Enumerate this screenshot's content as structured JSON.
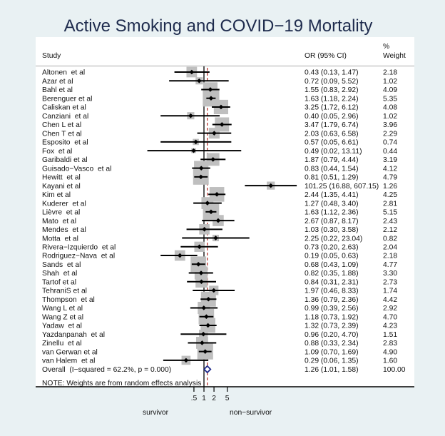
{
  "chart_data": {
    "type": "scatter",
    "plot_kind": "forest",
    "title": "Active Smoking and COVID−19 Mortality",
    "columns": {
      "study": "Study",
      "or_ci": "OR (95% CI)",
      "weight_line1": "%",
      "weight_line2": "Weight"
    },
    "xscale": "log",
    "null_value": 1,
    "x_ticks": [
      {
        "value": 0.5,
        "label": ".5"
      },
      {
        "value": 1,
        "label": "1"
      },
      {
        "value": 2,
        "label": "2"
      },
      {
        "value": 5,
        "label": "5"
      }
    ],
    "xlabel_left": "survivor",
    "xlabel_right": "non−survivor",
    "grid": false,
    "studies": [
      {
        "name": "Altonen  et al",
        "or": 0.43,
        "ci": [
          0.13,
          1.47
        ],
        "weight": 2.18,
        "or_ci_text": "0.43 (0.13, 1.47)",
        "weight_text": "2.18"
      },
      {
        "name": "Azar et al",
        "or": 0.72,
        "ci": [
          0.09,
          5.52
        ],
        "weight": 1.02,
        "or_ci_text": "0.72 (0.09, 5.52)",
        "weight_text": "1.02"
      },
      {
        "name": "Bahl et al",
        "or": 1.55,
        "ci": [
          0.83,
          2.92
        ],
        "weight": 4.09,
        "or_ci_text": "1.55 (0.83, 2.92)",
        "weight_text": "4.09"
      },
      {
        "name": "Berenguer et al",
        "or": 1.63,
        "ci": [
          1.18,
          2.24
        ],
        "weight": 5.35,
        "or_ci_text": "1.63 (1.18, 2.24)",
        "weight_text": "5.35"
      },
      {
        "name": "Caliskan et al",
        "or": 3.25,
        "ci": [
          1.72,
          6.12
        ],
        "weight": 4.08,
        "or_ci_text": "3.25 (1.72, 6.12)",
        "weight_text": "4.08"
      },
      {
        "name": "Canziani  et al",
        "or": 0.4,
        "ci": [
          0.05,
          2.96
        ],
        "weight": 1.02,
        "or_ci_text": "0.40 (0.05, 2.96)",
        "weight_text": "1.02"
      },
      {
        "name": "Chen L et al",
        "or": 3.47,
        "ci": [
          1.79,
          6.74
        ],
        "weight": 3.96,
        "or_ci_text": "3.47 (1.79, 6.74)",
        "weight_text": "3.96"
      },
      {
        "name": "Chen T et al",
        "or": 2.03,
        "ci": [
          0.63,
          6.58
        ],
        "weight": 2.29,
        "or_ci_text": "2.03 (0.63, 6.58)",
        "weight_text": "2.29"
      },
      {
        "name": "Esposito  et al",
        "or": 0.57,
        "ci": [
          0.05,
          6.61
        ],
        "weight": 0.74,
        "or_ci_text": "0.57 (0.05, 6.61)",
        "weight_text": "0.74"
      },
      {
        "name": "Fox  et al",
        "or": 0.49,
        "ci": [
          0.02,
          13.11
        ],
        "weight": 0.44,
        "or_ci_text": "0.49 (0.02, 13.11)",
        "weight_text": "0.44"
      },
      {
        "name": "Garibaldi et al",
        "or": 1.87,
        "ci": [
          0.79,
          4.44
        ],
        "weight": 3.19,
        "or_ci_text": "1.87 (0.79, 4.44)",
        "weight_text": "3.19"
      },
      {
        "name": "Guisado−Vasco  et al",
        "or": 0.83,
        "ci": [
          0.44,
          1.54
        ],
        "weight": 4.12,
        "or_ci_text": "0.83 (0.44, 1.54)",
        "weight_text": "4.12"
      },
      {
        "name": "Hewitt  et al",
        "or": 0.81,
        "ci": [
          0.51,
          1.29
        ],
        "weight": 4.79,
        "or_ci_text": "0.81 (0.51, 1.29)",
        "weight_text": "4.79"
      },
      {
        "name": "Kayani et al",
        "or": 101.25,
        "ci": [
          16.88,
          607.15
        ],
        "weight": 1.26,
        "or_ci_text": "101.25 (16.88, 607.15)",
        "weight_text": "1.26"
      },
      {
        "name": "Kim et al",
        "or": 2.44,
        "ci": [
          1.35,
          4.41
        ],
        "weight": 4.25,
        "or_ci_text": "2.44 (1.35, 4.41)",
        "weight_text": "4.25"
      },
      {
        "name": "Kuderer  et al",
        "or": 1.27,
        "ci": [
          0.48,
          3.4
        ],
        "weight": 2.81,
        "or_ci_text": "1.27 (0.48, 3.40)",
        "weight_text": "2.81"
      },
      {
        "name": "Lièvre  et al",
        "or": 1.63,
        "ci": [
          1.12,
          2.36
        ],
        "weight": 5.15,
        "or_ci_text": "1.63 (1.12, 2.36)",
        "weight_text": "5.15"
      },
      {
        "name": "Mato  et al",
        "or": 2.67,
        "ci": [
          0.87,
          8.17
        ],
        "weight": 2.43,
        "or_ci_text": "2.67 (0.87, 8.17)",
        "weight_text": "2.43"
      },
      {
        "name": "Mendes  et al",
        "or": 1.03,
        "ci": [
          0.3,
          3.58
        ],
        "weight": 2.12,
        "or_ci_text": "1.03 (0.30, 3.58)",
        "weight_text": "2.12"
      },
      {
        "name": "Motta  et al",
        "or": 2.25,
        "ci": [
          0.22,
          23.04
        ],
        "weight": 0.82,
        "or_ci_text": "2.25 (0.22, 23.04)",
        "weight_text": "0.82"
      },
      {
        "name": "Rivera−Izquierdo  et al",
        "or": 0.73,
        "ci": [
          0.2,
          2.63
        ],
        "weight": 2.04,
        "or_ci_text": "0.73 (0.20, 2.63)",
        "weight_text": "2.04"
      },
      {
        "name": "Rodriguez−Nava  et al",
        "or": 0.19,
        "ci": [
          0.05,
          0.63
        ],
        "weight": 2.18,
        "or_ci_text": "0.19 (0.05, 0.63)",
        "weight_text": "2.18"
      },
      {
        "name": "Sands  et al",
        "or": 0.68,
        "ci": [
          0.43,
          1.09
        ],
        "weight": 4.77,
        "or_ci_text": "0.68 (0.43, 1.09)",
        "weight_text": "4.77"
      },
      {
        "name": "Shah  et al",
        "or": 0.82,
        "ci": [
          0.35,
          1.88
        ],
        "weight": 3.3,
        "or_ci_text": "0.82 (0.35, 1.88)",
        "weight_text": "3.30"
      },
      {
        "name": "Tartof et al",
        "or": 0.84,
        "ci": [
          0.31,
          2.31
        ],
        "weight": 2.73,
        "or_ci_text": "0.84 (0.31, 2.31)",
        "weight_text": "2.73"
      },
      {
        "name": "TehraniS et al",
        "or": 1.97,
        "ci": [
          0.46,
          8.33
        ],
        "weight": 1.74,
        "or_ci_text": "1.97 (0.46, 8.33)",
        "weight_text": "1.74"
      },
      {
        "name": "Thompson  et al",
        "or": 1.36,
        "ci": [
          0.79,
          2.36
        ],
        "weight": 4.42,
        "or_ci_text": "1.36 (0.79, 2.36)",
        "weight_text": "4.42"
      },
      {
        "name": "Wang L et al",
        "or": 0.99,
        "ci": [
          0.39,
          2.56
        ],
        "weight": 2.92,
        "or_ci_text": "0.99 (0.39, 2.56)",
        "weight_text": "2.92"
      },
      {
        "name": "Wang Z et al",
        "or": 1.18,
        "ci": [
          0.73,
          1.92
        ],
        "weight": 4.7,
        "or_ci_text": "1.18 (0.73, 1.92)",
        "weight_text": "4.70"
      },
      {
        "name": "Yadaw  et al",
        "or": 1.32,
        "ci": [
          0.73,
          2.39
        ],
        "weight": 4.23,
        "or_ci_text": "1.32 (0.73, 2.39)",
        "weight_text": "4.23"
      },
      {
        "name": "Yazdanpanah  et al",
        "or": 0.96,
        "ci": [
          0.2,
          4.7
        ],
        "weight": 1.51,
        "or_ci_text": "0.96 (0.20, 4.70)",
        "weight_text": "1.51"
      },
      {
        "name": "Zinellu  et al",
        "or": 0.88,
        "ci": [
          0.33,
          2.34
        ],
        "weight": 2.83,
        "or_ci_text": "0.88 (0.33, 2.34)",
        "weight_text": "2.83"
      },
      {
        "name": "van Gerwan et al",
        "or": 1.09,
        "ci": [
          0.7,
          1.69
        ],
        "weight": 4.9,
        "or_ci_text": "1.09 (0.70, 1.69)",
        "weight_text": "4.90"
      },
      {
        "name": "van Halem  et al",
        "or": 0.29,
        "ci": [
          0.06,
          1.35
        ],
        "weight": 1.6,
        "or_ci_text": "0.29 (0.06, 1.35)",
        "weight_text": "1.60"
      }
    ],
    "overall": {
      "label": "Overall  (I−squared = 62.2%, p = 0.000)",
      "i_squared_pct": 62.2,
      "p_value": "0.000",
      "or": 1.26,
      "ci": [
        1.01,
        1.58
      ],
      "weight": 100.0,
      "or_ci_text": "1.26 (1.01, 1.58)",
      "weight_text": "100.00"
    },
    "note": "NOTE: Weights are from random effects analysis",
    "colors": {
      "background": "#e9f1f3",
      "title": "#1e2b4d",
      "weight_box": "#bfbfbf",
      "marker": "#000000",
      "ci_line": "#000000",
      "null_line": "#000000",
      "pooled_line": "#b5352f",
      "overall_diamond": "#1f2a8a"
    }
  }
}
